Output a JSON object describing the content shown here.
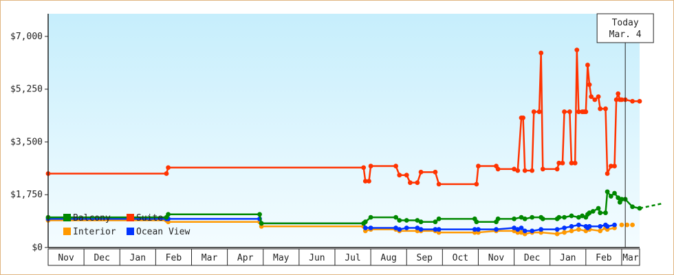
{
  "chart_data": {
    "type": "line",
    "title": "",
    "xlabel": "",
    "ylabel": "",
    "ylim": [
      0,
      7750
    ],
    "y_ticks": [
      {
        "value": 0,
        "label": "$0"
      },
      {
        "value": 1750,
        "label": "$1,750"
      },
      {
        "value": 3500,
        "label": "$3,500"
      },
      {
        "value": 5250,
        "label": "$5,250"
      },
      {
        "value": 7000,
        "label": "$7,000"
      }
    ],
    "months": [
      "Nov",
      "Dec",
      "Jan",
      "Feb",
      "Mar",
      "Apr",
      "May",
      "Jun",
      "Jul",
      "Aug",
      "Sep",
      "Oct",
      "Nov",
      "Dec",
      "Jan",
      "Feb",
      "Mar"
    ],
    "x_unit": "month index (0 = start of Nov, 1 = start of Dec, ...)",
    "xlim": [
      0,
      16.5
    ],
    "grid": false,
    "legend_position": "bottom-left",
    "today": {
      "line1": "Today",
      "line2": "Mar. 4",
      "x": 16.1
    },
    "series": [
      {
        "name": "Suite",
        "color": "#ff3300",
        "points": [
          [
            0,
            2450
          ],
          [
            3.3,
            2450
          ],
          [
            3.35,
            2650
          ],
          [
            8.8,
            2650
          ],
          [
            8.85,
            2200
          ],
          [
            8.95,
            2200
          ],
          [
            9.0,
            2700
          ],
          [
            9.7,
            2700
          ],
          [
            9.8,
            2400
          ],
          [
            10.0,
            2400
          ],
          [
            10.1,
            2150
          ],
          [
            10.3,
            2150
          ],
          [
            10.4,
            2500
          ],
          [
            10.8,
            2500
          ],
          [
            10.9,
            2100
          ],
          [
            11.95,
            2100
          ],
          [
            12.0,
            2700
          ],
          [
            12.5,
            2700
          ],
          [
            12.55,
            2600
          ],
          [
            13.0,
            2600
          ],
          [
            13.1,
            2550
          ],
          [
            13.2,
            4300
          ],
          [
            13.25,
            4300
          ],
          [
            13.3,
            2550
          ],
          [
            13.5,
            2550
          ],
          [
            13.55,
            4500
          ],
          [
            13.7,
            4500
          ],
          [
            13.75,
            6450
          ],
          [
            13.8,
            2600
          ],
          [
            14.2,
            2600
          ],
          [
            14.25,
            2800
          ],
          [
            14.35,
            2800
          ],
          [
            14.4,
            4500
          ],
          [
            14.55,
            4500
          ],
          [
            14.6,
            2800
          ],
          [
            14.7,
            2800
          ],
          [
            14.75,
            6550
          ],
          [
            14.8,
            4500
          ],
          [
            14.9,
            4500
          ],
          [
            14.95,
            4500
          ],
          [
            15.0,
            4500
          ],
          [
            15.05,
            6050
          ],
          [
            15.1,
            5400
          ],
          [
            15.15,
            5000
          ],
          [
            15.25,
            4900
          ],
          [
            15.35,
            5000
          ],
          [
            15.4,
            4600
          ],
          [
            15.55,
            4600
          ],
          [
            15.6,
            2450
          ],
          [
            15.7,
            2700
          ],
          [
            15.8,
            2700
          ],
          [
            15.85,
            4900
          ],
          [
            15.9,
            5100
          ],
          [
            15.95,
            4900
          ],
          [
            16.0,
            4900
          ],
          [
            16.1,
            4900
          ],
          [
            16.3,
            4850
          ],
          [
            16.5,
            4850
          ]
        ]
      },
      {
        "name": "Balcony",
        "color": "#008800",
        "points": [
          [
            0,
            1000
          ],
          [
            3.3,
            1000
          ],
          [
            3.35,
            1100
          ],
          [
            5.9,
            1100
          ],
          [
            5.95,
            800
          ],
          [
            8.8,
            800
          ],
          [
            8.85,
            850
          ],
          [
            9.0,
            1000
          ],
          [
            9.7,
            1000
          ],
          [
            9.8,
            900
          ],
          [
            10.0,
            900
          ],
          [
            10.3,
            900
          ],
          [
            10.4,
            850
          ],
          [
            10.8,
            850
          ],
          [
            10.9,
            950
          ],
          [
            11.9,
            950
          ],
          [
            11.95,
            850
          ],
          [
            12.5,
            850
          ],
          [
            12.55,
            950
          ],
          [
            13.0,
            950
          ],
          [
            13.2,
            1000
          ],
          [
            13.3,
            950
          ],
          [
            13.5,
            1000
          ],
          [
            13.75,
            1000
          ],
          [
            13.8,
            950
          ],
          [
            14.2,
            950
          ],
          [
            14.25,
            1000
          ],
          [
            14.4,
            1000
          ],
          [
            14.6,
            1050
          ],
          [
            14.8,
            1000
          ],
          [
            14.9,
            1050
          ],
          [
            15.0,
            1000
          ],
          [
            15.05,
            1100
          ],
          [
            15.1,
            1150
          ],
          [
            15.2,
            1200
          ],
          [
            15.35,
            1300
          ],
          [
            15.4,
            1150
          ],
          [
            15.55,
            1150
          ],
          [
            15.6,
            1850
          ],
          [
            15.7,
            1700
          ],
          [
            15.8,
            1800
          ],
          [
            15.9,
            1650
          ],
          [
            15.95,
            1500
          ],
          [
            16.0,
            1600
          ],
          [
            16.1,
            1600
          ],
          [
            16.3,
            1350
          ],
          [
            16.5,
            1300
          ]
        ],
        "forecast": [
          [
            16.5,
            1300
          ],
          [
            17.1,
            1450
          ]
        ]
      },
      {
        "name": "Interior",
        "color": "#ff9900",
        "points": [
          [
            0,
            900
          ],
          [
            3.3,
            900
          ],
          [
            3.35,
            850
          ],
          [
            5.9,
            850
          ],
          [
            5.95,
            700
          ],
          [
            8.8,
            700
          ],
          [
            8.85,
            550
          ],
          [
            9.0,
            600
          ],
          [
            9.7,
            600
          ],
          [
            9.8,
            550
          ],
          [
            10.3,
            550
          ],
          [
            10.4,
            550
          ],
          [
            10.8,
            550
          ],
          [
            10.9,
            500
          ],
          [
            11.9,
            500
          ],
          [
            12.0,
            500
          ],
          [
            12.5,
            550
          ],
          [
            13.0,
            550
          ],
          [
            13.1,
            500
          ],
          [
            13.2,
            500
          ],
          [
            13.3,
            450
          ],
          [
            13.5,
            500
          ],
          [
            13.75,
            500
          ],
          [
            14.2,
            450
          ],
          [
            14.4,
            500
          ],
          [
            14.6,
            550
          ],
          [
            14.8,
            600
          ],
          [
            15.0,
            550
          ],
          [
            15.1,
            600
          ],
          [
            15.4,
            550
          ],
          [
            15.55,
            650
          ],
          [
            15.6,
            600
          ],
          [
            15.8,
            650
          ]
        ],
        "extra_points": [
          [
            16.0,
            750
          ],
          [
            16.15,
            750
          ],
          [
            16.3,
            750
          ]
        ]
      },
      {
        "name": "Ocean View",
        "color": "#0033ff",
        "points": [
          [
            0,
            950
          ],
          [
            3.3,
            950
          ],
          [
            3.35,
            950
          ],
          [
            5.9,
            950
          ],
          [
            5.95,
            800
          ],
          [
            8.8,
            800
          ],
          [
            8.85,
            650
          ],
          [
            9.0,
            650
          ],
          [
            9.7,
            650
          ],
          [
            9.8,
            600
          ],
          [
            10.0,
            650
          ],
          [
            10.3,
            650
          ],
          [
            10.4,
            600
          ],
          [
            10.8,
            600
          ],
          [
            10.9,
            600
          ],
          [
            11.9,
            600
          ],
          [
            12.0,
            600
          ],
          [
            12.5,
            600
          ],
          [
            13.0,
            650
          ],
          [
            13.1,
            600
          ],
          [
            13.2,
            650
          ],
          [
            13.3,
            550
          ],
          [
            13.5,
            550
          ],
          [
            13.75,
            600
          ],
          [
            14.2,
            600
          ],
          [
            14.4,
            650
          ],
          [
            14.6,
            700
          ],
          [
            14.8,
            750
          ],
          [
            15.0,
            700
          ],
          [
            15.05,
            650
          ],
          [
            15.1,
            700
          ],
          [
            15.4,
            700
          ],
          [
            15.55,
            750
          ],
          [
            15.6,
            700
          ],
          [
            15.8,
            750
          ]
        ]
      }
    ],
    "legend": [
      {
        "name": "Balcony",
        "color": "#008800"
      },
      {
        "name": "Suite",
        "color": "#ff3300"
      },
      {
        "name": "Interior",
        "color": "#ff9900"
      },
      {
        "name": "Ocean View",
        "color": "#0033ff"
      }
    ]
  }
}
